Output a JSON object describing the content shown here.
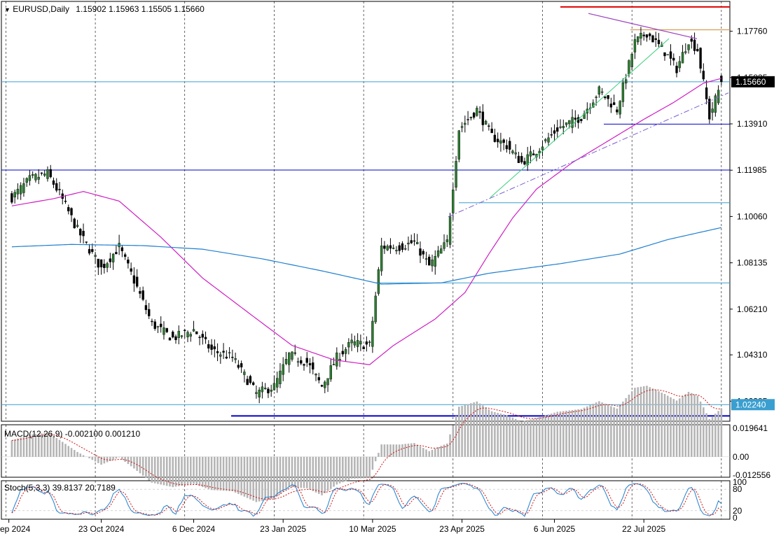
{
  "header": {
    "symbol": "EURUSD,Daily",
    "ohlc": "1.15902 1.15963 1.15505 1.15660"
  },
  "macd": {
    "label": "MACD(12,26,9) -0.002100 0.001210",
    "axis_ticks": [
      0.019641,
      0.0,
      -0.012556
    ],
    "axis_labels": [
      "0.019641",
      "0.00",
      "-0.012556"
    ]
  },
  "stoch": {
    "label": "Stoch(5,3,3) 39.8137 20.7189",
    "axis_labels": [
      "100",
      "80",
      "20",
      "0"
    ],
    "levels": [
      80,
      20
    ]
  },
  "price_axis": {
    "labels": [
      "1.17760",
      "1.15835",
      "1.13910",
      "1.11985",
      "1.10060",
      "1.08135",
      "1.06210",
      "1.04310",
      "1.02385"
    ],
    "current_price": "1.15660",
    "marker_price": "1.02240"
  },
  "date_axis": [
    "9 Sep 2024",
    "23 Oct 2024",
    "6 Dec 2024",
    "23 Jan 2025",
    "10 Mar 2025",
    "23 Apr 2025",
    "6 Jun 2025",
    "22 Jul 2025"
  ],
  "colors": {
    "bull_candle": "#2e7d32",
    "bear_candle": "#000000",
    "ma_fast": "#d01fc4",
    "ma_slow": "#1f7fcf",
    "hline_blue": "#0000c8",
    "hline_cyan": "#3a9fd0",
    "hline_red": "#e00000",
    "hline_orange": "#d08a30",
    "macd_hist": "#b4b4b4",
    "macd_signal": "#d01010",
    "stoch_main": "#1f7fcf",
    "stoch_signal": "#d01010",
    "trend_green": "#39d07a",
    "trend_purple": "#9a3fc0",
    "trend_dashdot": "#7a5fd0"
  },
  "chart_data": {
    "type": "candlestick",
    "symbol": "EURUSD",
    "timeframe": "Daily",
    "ylim": [
      1.0155,
      1.19
    ],
    "x_ticks": [
      "9 Sep 2024",
      "23 Oct 2024",
      "6 Dec 2024",
      "23 Jan 2025",
      "10 Mar 2025",
      "23 Apr 2025",
      "6 Jun 2025",
      "22 Jul 2025"
    ],
    "close_path": [
      {
        "bar": 0,
        "close": 1.1085
      },
      {
        "bar": 6,
        "close": 1.116
      },
      {
        "bar": 12,
        "close": 1.1185
      },
      {
        "bar": 16,
        "close": 1.11
      },
      {
        "bar": 22,
        "close": 1.095
      },
      {
        "bar": 30,
        "close": 1.079
      },
      {
        "bar": 36,
        "close": 1.088
      },
      {
        "bar": 41,
        "close": 1.074
      },
      {
        "bar": 47,
        "close": 1.056
      },
      {
        "bar": 54,
        "close": 1.05
      },
      {
        "bar": 61,
        "close": 1.0535
      },
      {
        "bar": 67,
        "close": 1.045
      },
      {
        "bar": 74,
        "close": 1.042
      },
      {
        "bar": 82,
        "close": 1.027
      },
      {
        "bar": 88,
        "close": 1.03
      },
      {
        "bar": 93,
        "close": 1.043
      },
      {
        "bar": 99,
        "close": 1.04
      },
      {
        "bar": 104,
        "close": 1.03
      },
      {
        "bar": 109,
        "close": 1.042
      },
      {
        "bar": 114,
        "close": 1.048
      },
      {
        "bar": 120,
        "close": 1.047
      },
      {
        "bar": 124,
        "close": 1.088
      },
      {
        "bar": 130,
        "close": 1.088
      },
      {
        "bar": 135,
        "close": 1.09
      },
      {
        "bar": 140,
        "close": 1.08
      },
      {
        "bar": 146,
        "close": 1.09
      },
      {
        "bar": 150,
        "close": 1.137
      },
      {
        "bar": 156,
        "close": 1.145
      },
      {
        "bar": 161,
        "close": 1.134
      },
      {
        "bar": 166,
        "close": 1.13
      },
      {
        "bar": 171,
        "close": 1.123
      },
      {
        "bar": 176,
        "close": 1.128
      },
      {
        "bar": 183,
        "close": 1.137
      },
      {
        "bar": 191,
        "close": 1.142
      },
      {
        "bar": 197,
        "close": 1.153
      },
      {
        "bar": 203,
        "close": 1.145
      },
      {
        "bar": 209,
        "close": 1.173
      },
      {
        "bar": 213,
        "close": 1.177
      },
      {
        "bar": 219,
        "close": 1.169
      },
      {
        "bar": 223,
        "close": 1.162
      },
      {
        "bar": 227,
        "close": 1.174
      },
      {
        "bar": 230,
        "close": 1.17
      },
      {
        "bar": 234,
        "close": 1.142
      },
      {
        "bar": 238,
        "close": 1.1566
      }
    ],
    "ma_fast": [
      {
        "bar": 0,
        "value": 1.105
      },
      {
        "bar": 14,
        "value": 1.108
      },
      {
        "bar": 24,
        "value": 1.111
      },
      {
        "bar": 36,
        "value": 1.107
      },
      {
        "bar": 50,
        "value": 1.092
      },
      {
        "bar": 64,
        "value": 1.075
      },
      {
        "bar": 80,
        "value": 1.06
      },
      {
        "bar": 94,
        "value": 1.047
      },
      {
        "bar": 108,
        "value": 1.041
      },
      {
        "bar": 120,
        "value": 1.039
      },
      {
        "bar": 128,
        "value": 1.047
      },
      {
        "bar": 142,
        "value": 1.058
      },
      {
        "bar": 152,
        "value": 1.069
      },
      {
        "bar": 160,
        "value": 1.085
      },
      {
        "bar": 168,
        "value": 1.1
      },
      {
        "bar": 176,
        "value": 1.112
      },
      {
        "bar": 188,
        "value": 1.123
      },
      {
        "bar": 200,
        "value": 1.132
      },
      {
        "bar": 212,
        "value": 1.141
      },
      {
        "bar": 222,
        "value": 1.148
      },
      {
        "bar": 232,
        "value": 1.156
      },
      {
        "bar": 238,
        "value": 1.158
      }
    ],
    "ma_slow": [
      {
        "bar": 0,
        "value": 1.088
      },
      {
        "bar": 20,
        "value": 1.089
      },
      {
        "bar": 44,
        "value": 1.0885
      },
      {
        "bar": 64,
        "value": 1.087
      },
      {
        "bar": 84,
        "value": 1.083
      },
      {
        "bar": 104,
        "value": 1.078
      },
      {
        "bar": 124,
        "value": 1.0725
      },
      {
        "bar": 144,
        "value": 1.073
      },
      {
        "bar": 160,
        "value": 1.077
      },
      {
        "bar": 184,
        "value": 1.081
      },
      {
        "bar": 204,
        "value": 1.085
      },
      {
        "bar": 220,
        "value": 1.091
      },
      {
        "bar": 238,
        "value": 1.096
      }
    ],
    "hlines": [
      {
        "price": 1.1877,
        "color": "red"
      },
      {
        "price": 1.1782,
        "color": "orange"
      },
      {
        "price": 1.1566,
        "color": "cyan"
      },
      {
        "price": 1.139,
        "color": "blue"
      },
      {
        "price": 1.1199,
        "color": "blue"
      },
      {
        "price": 1.1063,
        "color": "cyan"
      },
      {
        "price": 1.073,
        "color": "cyan"
      },
      {
        "price": 1.0224,
        "color": "cyan"
      },
      {
        "price": 1.0177,
        "color": "blue"
      }
    ],
    "current_price": 1.1566,
    "macd_values": {
      "main": -0.0021,
      "signal": 0.00121
    },
    "stoch_values": {
      "k": 39.8137,
      "d": 20.7189
    }
  }
}
